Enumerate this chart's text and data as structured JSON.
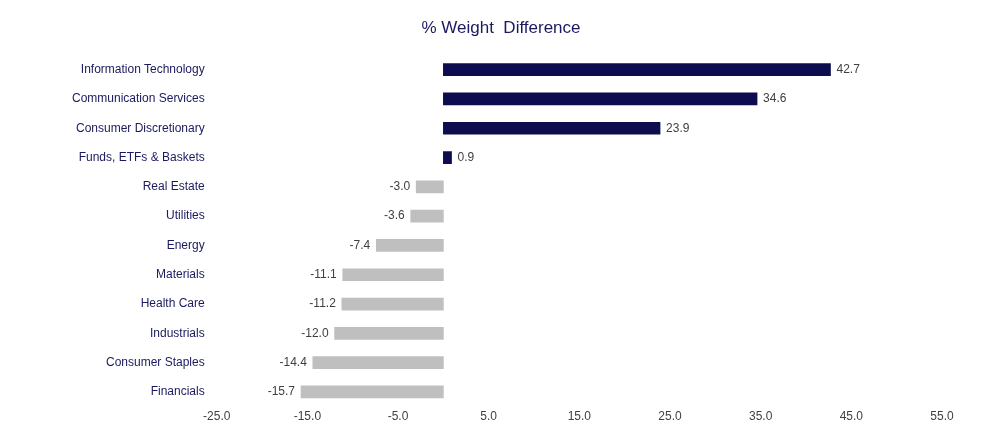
{
  "chart_data": {
    "type": "bar",
    "orientation": "horizontal",
    "title": "% Weight  Difference",
    "categories": [
      "Information Technology",
      "Communication Services",
      "Consumer Discretionary",
      "Funds, ETFs & Baskets",
      "Real Estate",
      "Utilities",
      "Energy",
      "Materials",
      "Health Care",
      "Industrials",
      "Consumer Staples",
      "Financials"
    ],
    "values": [
      42.7,
      34.6,
      23.9,
      0.9,
      -3.0,
      -3.6,
      -7.4,
      -11.1,
      -11.2,
      -12.0,
      -14.4,
      -15.7
    ],
    "colors": [
      "#0c0c4e",
      "#0c0c4e",
      "#0c0c4e",
      "#0c0c4e",
      "#bfbfbf",
      "#bfbfbf",
      "#bfbfbf",
      "#bfbfbf",
      "#bfbfbf",
      "#bfbfbf",
      "#bfbfbf",
      "#bfbfbf"
    ],
    "value_labels": [
      "42.7",
      "34.6",
      "23.9",
      "0.9",
      "-3.0",
      "-3.6",
      "-7.4",
      "-11.1",
      "-11.2",
      "-12.0",
      "-14.4",
      "-15.7"
    ],
    "xlim": [
      -25,
      55
    ],
    "xticks": [
      {
        "value": -25,
        "label": "-25.0"
      },
      {
        "value": -15,
        "label": "-15.0"
      },
      {
        "value": -5,
        "label": "-5.0"
      },
      {
        "value": 5,
        "label": "5.0"
      },
      {
        "value": 15,
        "label": "15.0"
      },
      {
        "value": 25,
        "label": "25.0"
      },
      {
        "value": 35,
        "label": "35.0"
      },
      {
        "value": 45,
        "label": "45.0"
      },
      {
        "value": 55,
        "label": "55.0"
      }
    ],
    "grid": false,
    "legend": false
  }
}
